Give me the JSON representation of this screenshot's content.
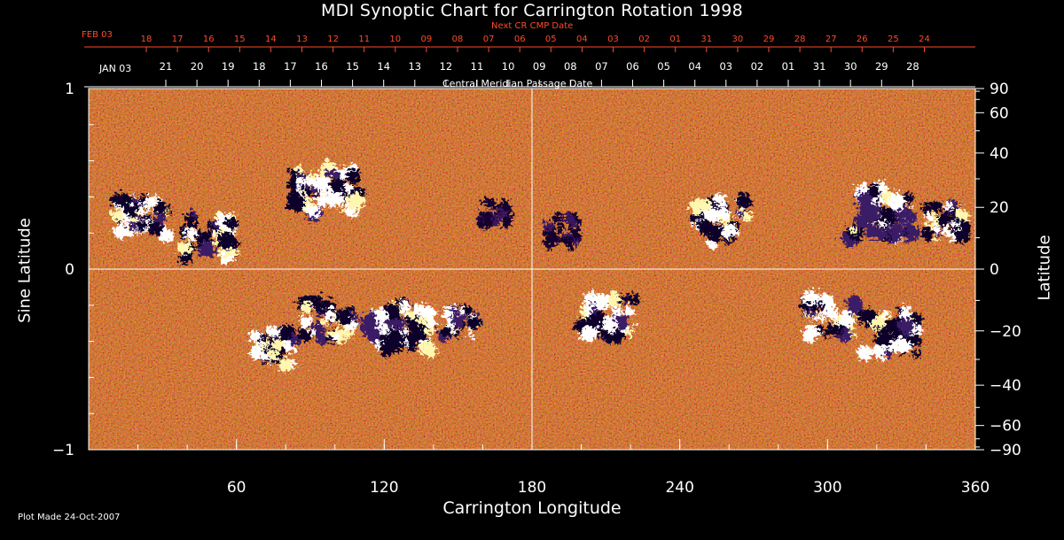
{
  "title": "MDI Synoptic Chart for Carrington Rotation 1998",
  "plot_made": "Plot Made 24-Oct-2007",
  "colors": {
    "background": "#000000",
    "axes": "#ffffff",
    "next_cr_text": "#ff4a2a",
    "map_mid": "#e0521a",
    "positive_polarity": "#ffffff",
    "negative_polarity": "#0a0030"
  },
  "chart_data": {
    "type": "heatmap",
    "title": "MDI Synoptic Chart for Carrington Rotation 1998",
    "xlabel": "Carrington Longitude",
    "ylabel_left": "Sine Latitude",
    "ylabel_right": "Latitude",
    "xlim": [
      0,
      360
    ],
    "ylim": [
      -1,
      1
    ],
    "x_ticks": [
      60,
      120,
      180,
      240,
      300,
      360
    ],
    "x_minor_step": 20,
    "y_ticks_left": [
      {
        "value": 1,
        "label": "1"
      },
      {
        "value": 0,
        "label": "0"
      },
      {
        "value": -1,
        "label": "−1"
      }
    ],
    "y_minor_step": 0.2,
    "y_ticks_right": [
      90,
      60,
      40,
      20,
      0,
      -20,
      -40,
      -60,
      -90
    ],
    "y_ticks_right_labels": [
      "90",
      "60",
      "40",
      "20",
      "0",
      "−20",
      "−40",
      "−60",
      "−90"
    ],
    "grid_crosshair": {
      "x": 180,
      "y": 0
    },
    "top_axis_next_cr": {
      "label": "Next CR CMP Date",
      "month_label": "FEB 03",
      "dates": [
        "18",
        "17",
        "16",
        "15",
        "14",
        "13",
        "12",
        "11",
        "10",
        "09",
        "08",
        "07",
        "06",
        "05",
        "04",
        "03",
        "02",
        "01",
        "31",
        "30",
        "29",
        "28",
        "27",
        "26",
        "25",
        "24"
      ]
    },
    "top_axis_cmp": {
      "label": "Central Meridian Passage Date",
      "month_label": "JAN 03",
      "dates": [
        "21",
        "20",
        "19",
        "18",
        "17",
        "16",
        "15",
        "14",
        "13",
        "12",
        "11",
        "10",
        "09",
        "08",
        "07",
        "06",
        "05",
        "04",
        "03",
        "02",
        "01",
        "31",
        "30",
        "29",
        "28"
      ]
    },
    "active_regions": [
      {
        "lon": 20,
        "sinlat": 0.3,
        "polarity": "mixed",
        "strength": 0.8
      },
      {
        "lon": 48,
        "sinlat": 0.19,
        "polarity": "mixed",
        "strength": 0.9
      },
      {
        "lon": 95,
        "sinlat": 0.45,
        "polarity": "mixed",
        "strength": 1.0
      },
      {
        "lon": 163,
        "sinlat": 0.32,
        "polarity": "negative",
        "strength": 0.5
      },
      {
        "lon": 190,
        "sinlat": 0.22,
        "polarity": "negative",
        "strength": 0.6
      },
      {
        "lon": 255,
        "sinlat": 0.28,
        "polarity": "mixed",
        "strength": 0.9
      },
      {
        "lon": 320,
        "sinlat": 0.32,
        "polarity": "mixed",
        "strength": 1.0
      },
      {
        "lon": 347,
        "sinlat": 0.28,
        "polarity": "mixed",
        "strength": 0.7
      },
      {
        "lon": 75,
        "sinlat": -0.42,
        "polarity": "mixed",
        "strength": 0.7
      },
      {
        "lon": 96,
        "sinlat": -0.26,
        "polarity": "mixed",
        "strength": 0.8
      },
      {
        "lon": 125,
        "sinlat": -0.3,
        "polarity": "mixed",
        "strength": 1.0
      },
      {
        "lon": 150,
        "sinlat": -0.28,
        "polarity": "mixed",
        "strength": 0.6
      },
      {
        "lon": 210,
        "sinlat": -0.25,
        "polarity": "mixed",
        "strength": 0.9
      },
      {
        "lon": 300,
        "sinlat": -0.25,
        "polarity": "mixed",
        "strength": 0.8
      },
      {
        "lon": 325,
        "sinlat": -0.33,
        "polarity": "mixed",
        "strength": 0.9
      }
    ]
  }
}
